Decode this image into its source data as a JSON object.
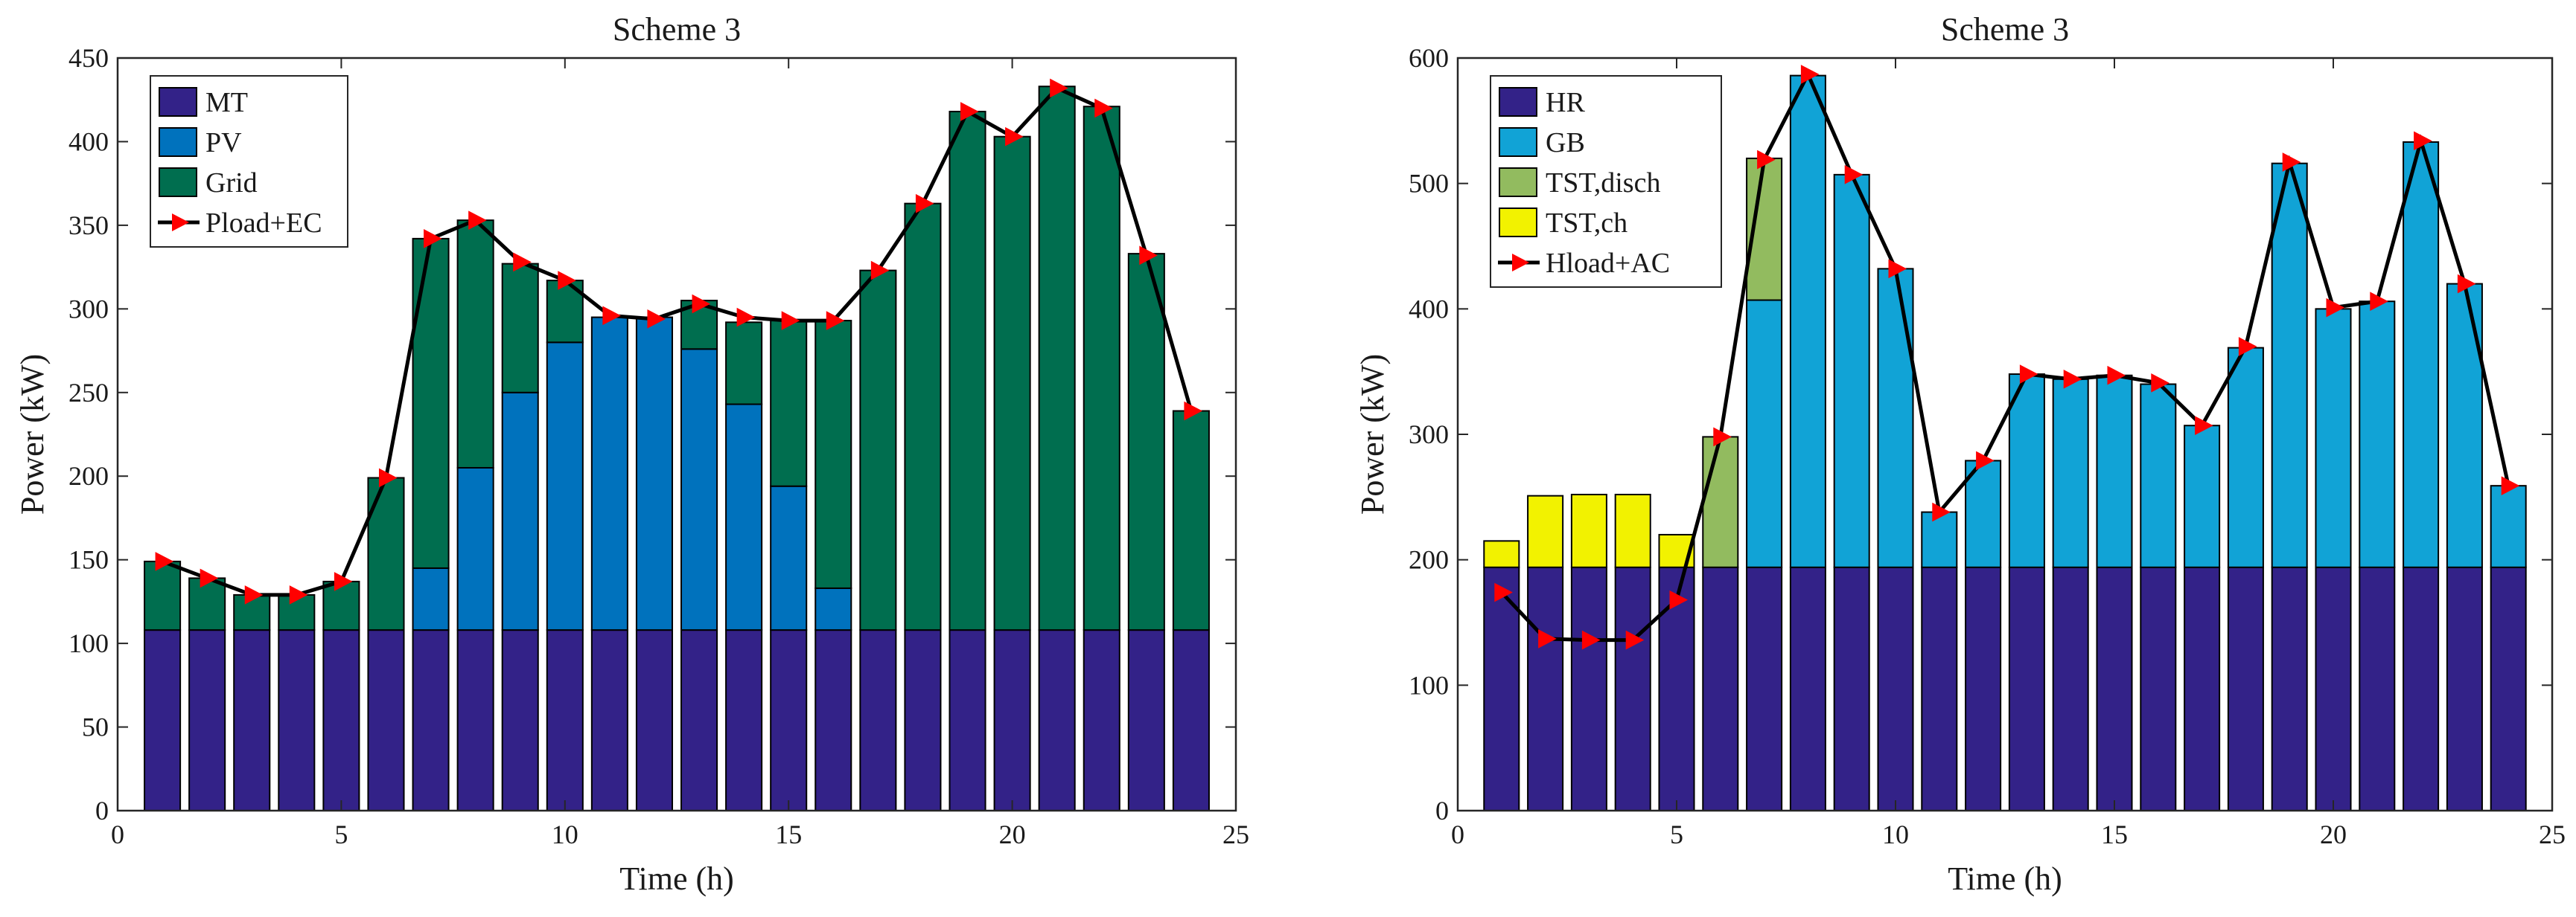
{
  "chart_data": [
    {
      "type": "bar",
      "stacked": true,
      "title": "Scheme 3",
      "xlabel": "Time (h)",
      "ylabel": "Power (kW)",
      "xlim": [
        0,
        25
      ],
      "ylim": [
        0,
        450
      ],
      "xticks": [
        0,
        5,
        10,
        15,
        20,
        25
      ],
      "yticks": [
        0,
        50,
        100,
        150,
        200,
        250,
        300,
        350,
        400,
        450
      ],
      "categories": [
        1,
        2,
        3,
        4,
        5,
        6,
        7,
        8,
        9,
        10,
        11,
        12,
        13,
        14,
        15,
        16,
        17,
        18,
        19,
        20,
        21,
        22,
        23,
        24
      ],
      "legend_position": "top-left",
      "series": [
        {
          "name": "MT",
          "color": "#332288",
          "values": [
            108,
            108,
            108,
            108,
            108,
            108,
            108,
            108,
            108,
            108,
            108,
            108,
            108,
            108,
            108,
            108,
            108,
            108,
            108,
            108,
            108,
            108,
            108,
            108
          ]
        },
        {
          "name": "PV",
          "color": "#0072BD",
          "values": [
            0,
            0,
            0,
            0,
            0,
            0,
            37,
            97,
            142,
            172,
            187,
            187,
            168,
            135,
            86,
            25,
            0,
            0,
            0,
            0,
            0,
            0,
            0,
            0
          ]
        },
        {
          "name": "Grid",
          "color": "#006E4F",
          "values": [
            41,
            31,
            21,
            21,
            29,
            91,
            197,
            148,
            77,
            37,
            0,
            0,
            29,
            49,
            99,
            160,
            215,
            255,
            310,
            295,
            325,
            313,
            225,
            131
          ]
        }
      ],
      "line": {
        "name": "Pload+EC",
        "color": "#FF0000",
        "values": [
          149,
          139,
          129,
          129,
          137,
          199,
          342,
          353,
          328,
          317,
          296,
          294,
          303,
          295,
          293,
          293,
          323,
          363,
          418,
          403,
          432,
          420,
          332,
          239
        ]
      }
    },
    {
      "type": "bar",
      "stacked": true,
      "title": "Scheme 3",
      "xlabel": "Time (h)",
      "ylabel": "Power (kW)",
      "xlim": [
        0,
        25
      ],
      "ylim": [
        0,
        600
      ],
      "xticks": [
        0,
        5,
        10,
        15,
        20,
        25
      ],
      "yticks": [
        0,
        100,
        200,
        300,
        400,
        500,
        600
      ],
      "categories": [
        1,
        2,
        3,
        4,
        5,
        6,
        7,
        8,
        9,
        10,
        11,
        12,
        13,
        14,
        15,
        16,
        17,
        18,
        19,
        20,
        21,
        22,
        23,
        24
      ],
      "legend_position": "top-left",
      "series": [
        {
          "name": "HR",
          "color": "#332288",
          "values": [
            194,
            194,
            194,
            194,
            194,
            194,
            194,
            194,
            194,
            194,
            194,
            194,
            194,
            194,
            194,
            194,
            194,
            194,
            194,
            194,
            194,
            194,
            194,
            194
          ]
        },
        {
          "name": "GB",
          "color": "#11A3D6",
          "values": [
            0,
            0,
            0,
            0,
            0,
            0,
            213,
            392,
            313,
            238,
            44,
            85,
            154,
            150,
            153,
            146,
            113,
            175,
            322,
            206,
            212,
            339,
            226,
            65
          ]
        },
        {
          "name": "TST,disch",
          "color": "#92BB5F",
          "values": [
            0,
            0,
            0,
            0,
            0,
            104,
            113,
            0,
            0,
            0,
            0,
            0,
            0,
            0,
            0,
            0,
            0,
            0,
            0,
            0,
            0,
            0,
            0,
            0
          ]
        },
        {
          "name": "TST,ch",
          "color": "#F2F200",
          "values": [
            21,
            57,
            58,
            58,
            26,
            0,
            0,
            0,
            0,
            0,
            0,
            0,
            0,
            0,
            0,
            0,
            0,
            0,
            0,
            0,
            0,
            0,
            0,
            0
          ]
        }
      ],
      "line": {
        "name": "Hload+AC",
        "color": "#FF0000",
        "values": [
          174,
          137,
          136,
          136,
          168,
          298,
          519,
          587,
          507,
          432,
          238,
          279,
          348,
          344,
          347,
          341,
          307,
          370,
          517,
          401,
          406,
          534,
          420,
          259
        ]
      }
    }
  ]
}
